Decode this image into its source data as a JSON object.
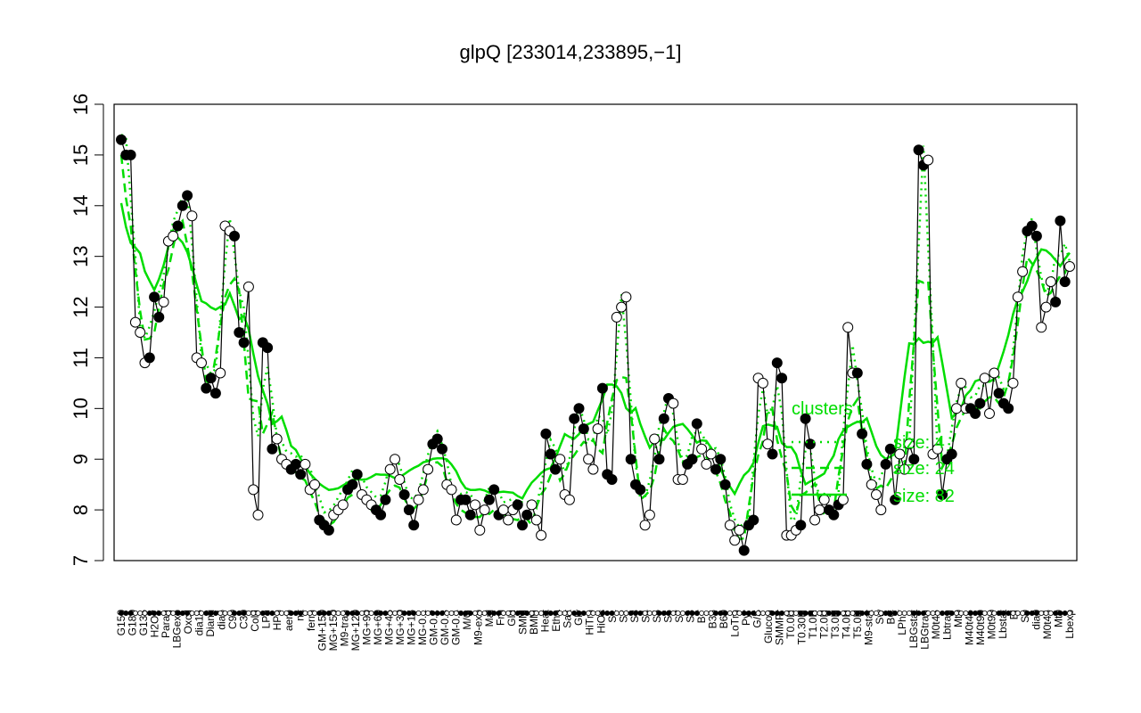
{
  "chart_data": {
    "type": "line",
    "title": "glpQ [233014,233895,−1]",
    "xlabel": "",
    "ylabel": "",
    "ylim": [
      7,
      16
    ],
    "yticks": [
      7,
      8,
      9,
      10,
      11,
      12,
      13,
      14,
      15,
      16
    ],
    "grid": false,
    "legend": {
      "placement": "right",
      "title": "clusters",
      "entries": [
        "size: 4",
        "size: 24",
        "size: 82"
      ]
    },
    "tick_labels": [
      "G150",
      "G180",
      "G135",
      "H2O2",
      "Paraq",
      "LBGexp",
      "Oxctl",
      "dia15",
      "Diami",
      "dia5",
      "C90",
      "C30",
      "Cold",
      "LPh",
      "HPh",
      "aero",
      "nit",
      "ferm",
      "GM+150",
      "MG+150",
      "M9-tran",
      "MG+120",
      "MG+90",
      "MG+60",
      "MG+45",
      "MG+30",
      "MG+15",
      "MG-0.1",
      "GM-0.2",
      "GM-0.3",
      "GM-0.4",
      "M/G",
      "M9-exp",
      "Mal",
      "Fru",
      "Glu",
      "SMM",
      "BMM",
      "Heat",
      "Etha",
      "Salt",
      "Gly",
      "HiTm",
      "HiOs",
      "S1",
      "S2",
      "S3",
      "S4",
      "S5",
      "S6",
      "S7",
      "S8",
      "BT",
      "B36",
      "B60",
      "LoTm",
      "Pyr",
      "G/S",
      "Glucon",
      "SMMPr",
      "T0.0H",
      "T0.30H",
      "T1.0H",
      "T2.0H",
      "T3.0H",
      "T4.0H",
      "T5.0H",
      "M9-stat",
      "Sw",
      "BC",
      "LPhT",
      "LBGstat",
      "LBGtran",
      "M0t45",
      "Lbtran",
      "Mt0",
      "M40t45",
      "M40t90",
      "M0t90",
      "Lbstat",
      "BI",
      "S0",
      "dia0",
      "M0t45",
      "Mt0",
      "Lbexp"
    ],
    "series": [
      {
        "name": "",
        "values": [
          15.3,
          15.0,
          15.0,
          11.7,
          11.5,
          10.9,
          11.0,
          12.2,
          11.8,
          12.1,
          13.3,
          13.4,
          13.6,
          14.0,
          14.2,
          13.8,
          11.0,
          10.9,
          10.4,
          10.6,
          10.3,
          10.7,
          13.6,
          13.5,
          13.4,
          11.5,
          11.3,
          12.4,
          8.4,
          7.9,
          11.3,
          11.2,
          9.2,
          9.4,
          9.0,
          8.9,
          8.8,
          8.9,
          8.7,
          8.9,
          8.4,
          8.5,
          7.8,
          7.7,
          7.6,
          7.9,
          8.0,
          8.1,
          8.4,
          8.5,
          8.7,
          8.3,
          8.2,
          8.1,
          8.0,
          7.9,
          8.2,
          8.8,
          9.0,
          8.6,
          8.3,
          8.0,
          7.7,
          8.2,
          8.4,
          8.8,
          9.3,
          9.4,
          9.2,
          8.5,
          8.4,
          7.8,
          8.2,
          8.2,
          7.9,
          8.1,
          7.6,
          8.0,
          8.2,
          8.4,
          7.9,
          8.0,
          7.8,
          8.0,
          8.1,
          7.7,
          7.9,
          8.1,
          7.8,
          7.5,
          9.5,
          9.1,
          8.8,
          9.0,
          8.3,
          8.2,
          9.8,
          10.0,
          9.6,
          9.0,
          8.8,
          9.6,
          10.4,
          8.7,
          8.6,
          11.8,
          12.0,
          12.2,
          9.0,
          8.5,
          8.4,
          7.7,
          7.9,
          9.4,
          9.0,
          9.8,
          10.2,
          10.1,
          8.6,
          8.6,
          8.9,
          9.0,
          9.7,
          9.2,
          8.9,
          9.1,
          8.8,
          9.0,
          8.5,
          7.7,
          7.4,
          7.6,
          7.2,
          7.7,
          7.8,
          10.6,
          10.5,
          9.3,
          9.1,
          10.9,
          10.6,
          7.5,
          7.5,
          7.6,
          7.7,
          9.8,
          9.3,
          7.8,
          8.0,
          8.2,
          8.0,
          7.9,
          8.1,
          8.2,
          11.6,
          10.7,
          10.7,
          9.5,
          8.9,
          8.5,
          8.3,
          8.0,
          8.9,
          9.2,
          8.2,
          9.1,
          8.8,
          9.3,
          9.0,
          15.1,
          14.8,
          14.9,
          9.1,
          9.2,
          8.3,
          9.0,
          9.1,
          10.0,
          10.5,
          10.0,
          10.0,
          9.9,
          10.1,
          10.6,
          9.9,
          10.7,
          10.3,
          10.1,
          10.0,
          10.5,
          12.2,
          12.7,
          13.5,
          13.6,
          13.4,
          11.6,
          12.0,
          12.5,
          12.1,
          13.7,
          12.5,
          12.8
        ]
      }
    ]
  }
}
